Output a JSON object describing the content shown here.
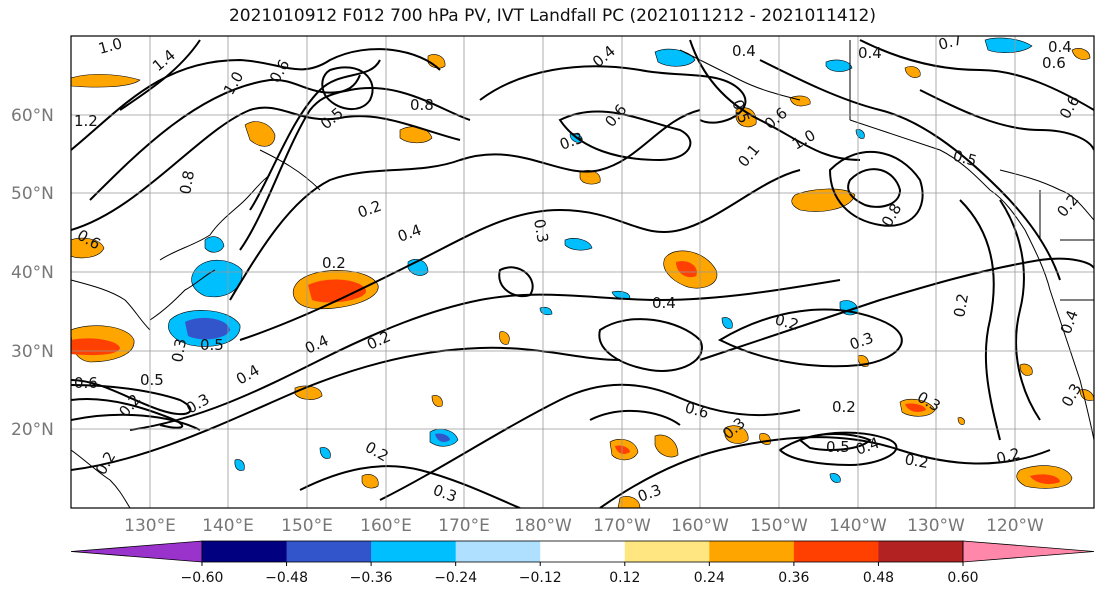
{
  "title": "2021010912 F012 700 hPa PV, IVT Landfall PC (2021011212 - 2021011412)",
  "map": {
    "lat_labels": [
      "60°N",
      "50°N",
      "40°N",
      "30°N",
      "20°N"
    ],
    "lon_labels": [
      "130°E",
      "140°E",
      "150°E",
      "160°E",
      "170°E",
      "180°W",
      "170°W",
      "160°W",
      "150°W",
      "140°W",
      "130°W",
      "120°W"
    ],
    "contour_labels": [
      "1.0",
      "1.4",
      "1.2",
      "1.0",
      "0.6",
      "0.8",
      "0.5",
      "0.4",
      "0.8",
      "0.3",
      "0.6",
      "0.2",
      "0.4",
      "0.2",
      "0.3",
      "0.4",
      "0.5",
      "0.4",
      "0.6",
      "0.1",
      "0.8",
      "1.0",
      "0.5",
      "0.4",
      "0.7",
      "0.4",
      "0.6",
      "0.6",
      "0.2",
      "0.4",
      "0.2",
      "0.3",
      "0.2",
      "0.4",
      "0.2",
      "0.3",
      "0.5",
      "0.4",
      "0.3",
      "0.2",
      "0.2",
      "0.6",
      "0.2",
      "0.6",
      "0.3",
      "0.5",
      "0.3",
      "0.6",
      "0.3",
      "0.2",
      "0.4",
      "0.2",
      "0.2",
      "0.3",
      "0.5",
      "0.3"
    ],
    "colors": {
      "land_line": "#000000",
      "grid": "#888888",
      "contour": "#000000"
    }
  },
  "colorbar": {
    "ticks": [
      "−0.60",
      "−0.48",
      "−0.36",
      "−0.24",
      "−0.12",
      "0.12",
      "0.24",
      "0.36",
      "0.48",
      "0.60"
    ],
    "colors": [
      "#9933cc",
      "#000080",
      "#3355cc",
      "#00bfff",
      "#b0e0ff",
      "#ffffff",
      "#ffe680",
      "#ffa500",
      "#ff4000",
      "#b22222",
      "#ff88aa"
    ]
  }
}
